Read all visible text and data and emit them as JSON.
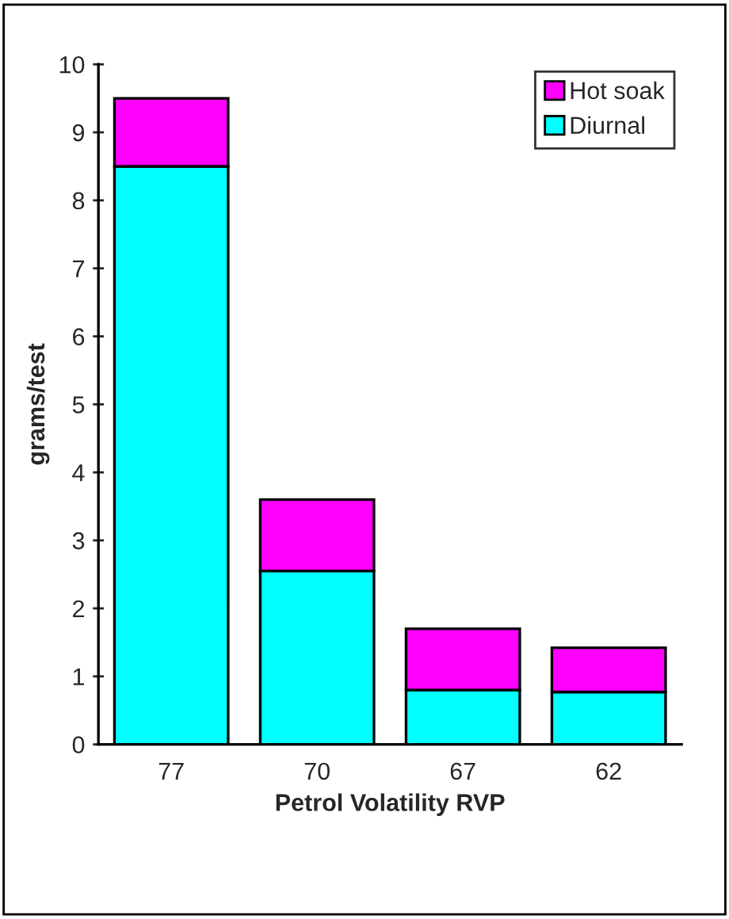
{
  "chart_data": {
    "type": "bar",
    "stacked": true,
    "xlabel": "Petrol Volatility RVP",
    "ylabel": "grams/test",
    "categories": [
      "77",
      "70",
      "67",
      "62"
    ],
    "series": [
      {
        "name": "Diurnal",
        "color": "#00ffff",
        "values": [
          8.5,
          2.55,
          0.8,
          0.77
        ]
      },
      {
        "name": "Hot soak",
        "color": "#ff00ff",
        "values": [
          1.0,
          1.05,
          0.9,
          0.65
        ]
      }
    ],
    "ylim": [
      0,
      10
    ],
    "yticks": [
      0,
      1,
      2,
      3,
      4,
      5,
      6,
      7,
      8,
      9,
      10
    ],
    "grid": false,
    "legend": "top right"
  }
}
